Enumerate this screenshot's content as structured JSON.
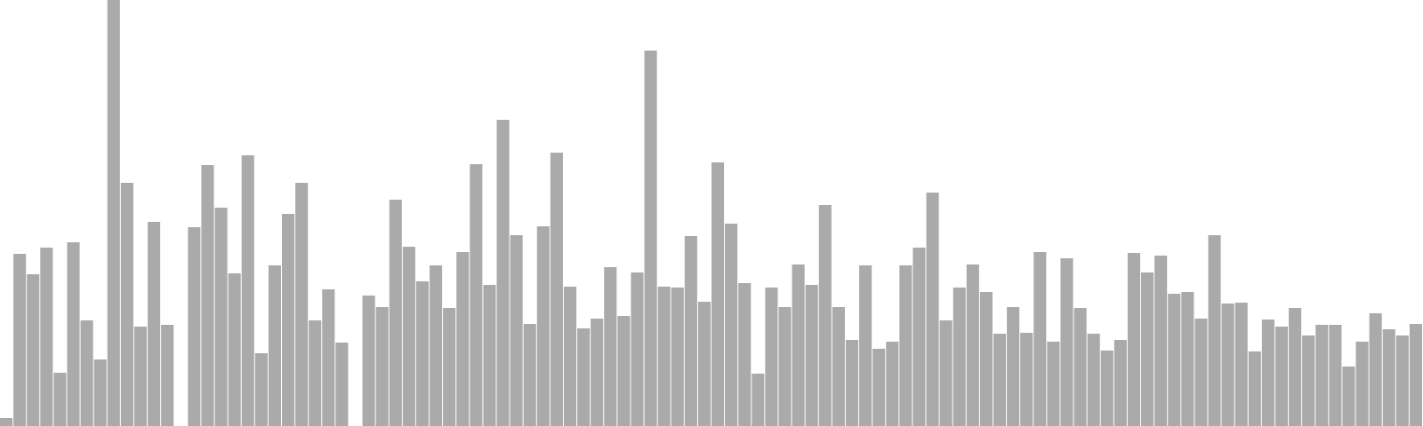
{
  "chart_data": {
    "type": "bar",
    "title": "",
    "xlabel": "",
    "ylabel": "",
    "grid": false,
    "legend": "none",
    "bar_color": "#aaaaaa",
    "ylim": [
      0,
      480
    ],
    "values": [
      9,
      194,
      171,
      201,
      60,
      207,
      119,
      75,
      480,
      274,
      112,
      230,
      114,
      0,
      224,
      294,
      246,
      172,
      305,
      82,
      181,
      239,
      274,
      119,
      154,
      94,
      0,
      147,
      134,
      255,
      202,
      163,
      181,
      133,
      196,
      295,
      159,
      345,
      215,
      115,
      225,
      308,
      157,
      110,
      121,
      179,
      124,
      173,
      423,
      157,
      156,
      214,
      140,
      297,
      228,
      161,
      59,
      156,
      134,
      182,
      159,
      249,
      134,
      97,
      181,
      87,
      95,
      181,
      201,
      263,
      119,
      156,
      182,
      151,
      104,
      134,
      105,
      196,
      95,
      189,
      133,
      104,
      85,
      97,
      195,
      173,
      192,
      149,
      151,
      121,
      215,
      138,
      139,
      84,
      120,
      112,
      133,
      102,
      114,
      114,
      67,
      95,
      127,
      109,
      102,
      115
    ]
  }
}
